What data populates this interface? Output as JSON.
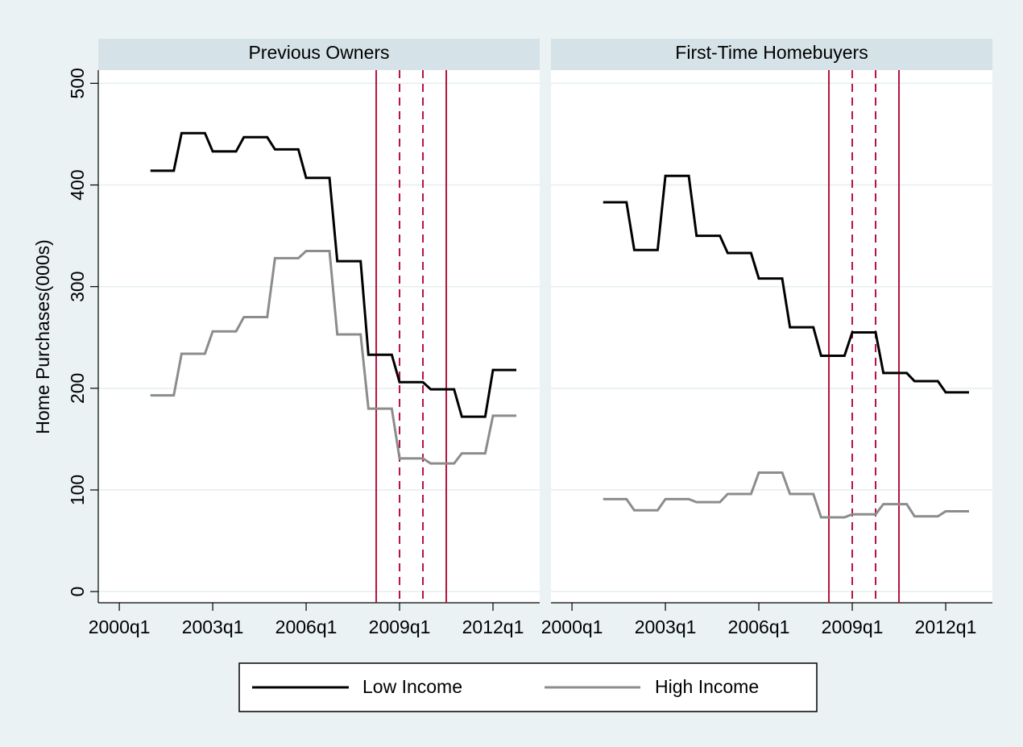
{
  "chart_data": [
    {
      "type": "line",
      "title": "Previous Owners",
      "ylabel": "Home Purchases(000s)",
      "x": [
        164,
        165,
        166,
        167,
        168,
        169,
        170,
        171,
        172,
        173,
        174,
        175,
        176,
        177,
        178,
        179,
        180,
        181,
        182,
        183,
        184,
        185,
        186,
        187,
        188,
        189,
        190,
        191,
        192,
        193,
        194,
        195,
        196,
        197,
        198,
        199,
        200,
        201,
        202,
        203,
        204,
        205,
        206,
        207,
        208,
        209,
        210,
        211
      ],
      "series": [
        {
          "name": "Low Income",
          "color": "#000000",
          "values": [
            414,
            414,
            414,
            414,
            451,
            451,
            451,
            451,
            433,
            433,
            433,
            433,
            447,
            447,
            447,
            447,
            435,
            435,
            435,
            435,
            407,
            407,
            407,
            407,
            325,
            325,
            325,
            325,
            233,
            233,
            233,
            233,
            206,
            206,
            206,
            206,
            199,
            199,
            199,
            199,
            172,
            172,
            172,
            172,
            218,
            218,
            218,
            218
          ]
        },
        {
          "name": "High Income",
          "color": "#8c8c8c",
          "values": [
            193,
            193,
            193,
            193,
            234,
            234,
            234,
            234,
            256,
            256,
            256,
            256,
            270,
            270,
            270,
            270,
            328,
            328,
            328,
            328,
            335,
            335,
            335,
            335,
            253,
            253,
            253,
            253,
            180,
            180,
            180,
            180,
            131,
            131,
            131,
            131,
            126,
            126,
            126,
            126,
            136,
            136,
            136,
            136,
            173,
            173,
            173,
            173
          ]
        }
      ],
      "xlim": [
        157.3,
        214
      ],
      "ylim": [
        -11,
        513
      ],
      "yticks": [
        0,
        100,
        200,
        300,
        400,
        500
      ],
      "xticks": [
        {
          "value": 160,
          "label": "2000q1"
        },
        {
          "value": 172,
          "label": "2003q1"
        },
        {
          "value": 184,
          "label": "2006q1"
        },
        {
          "value": 196,
          "label": "2009q1"
        },
        {
          "value": 208,
          "label": "2012q1"
        }
      ],
      "vlines": [
        {
          "x": 193,
          "style": "solid"
        },
        {
          "x": 196,
          "style": "dashed"
        },
        {
          "x": 199,
          "style": "dashed"
        },
        {
          "x": 202,
          "style": "solid"
        }
      ],
      "vline_color": "#b5123e",
      "grid": true
    },
    {
      "type": "line",
      "title": "First-Time Homebuyers",
      "x": [
        164,
        165,
        166,
        167,
        168,
        169,
        170,
        171,
        172,
        173,
        174,
        175,
        176,
        177,
        178,
        179,
        180,
        181,
        182,
        183,
        184,
        185,
        186,
        187,
        188,
        189,
        190,
        191,
        192,
        193,
        194,
        195,
        196,
        197,
        198,
        199,
        200,
        201,
        202,
        203,
        204,
        205,
        206,
        207,
        208,
        209,
        210,
        211
      ],
      "series": [
        {
          "color": "#000000",
          "values": [
            383,
            383,
            383,
            383,
            336,
            336,
            336,
            336,
            409,
            409,
            409,
            409,
            350,
            350,
            350,
            350,
            333,
            333,
            333,
            333,
            308,
            308,
            308,
            308,
            260,
            260,
            260,
            260,
            232,
            232,
            232,
            232,
            255,
            255,
            255,
            255,
            215,
            215,
            215,
            215,
            207,
            207,
            207,
            207,
            196,
            196,
            196,
            196
          ]
        },
        {
          "color": "#8c8c8c",
          "values": [
            91,
            91,
            91,
            91,
            80,
            80,
            80,
            80,
            91,
            91,
            91,
            91,
            88,
            88,
            88,
            88,
            96,
            96,
            96,
            96,
            117,
            117,
            117,
            117,
            96,
            96,
            96,
            96,
            73,
            73,
            73,
            73,
            76,
            76,
            76,
            76,
            86,
            86,
            86,
            86,
            74,
            74,
            74,
            74,
            79,
            79,
            79,
            79
          ]
        }
      ],
      "xlim": [
        157.3,
        214
      ],
      "ylim": [
        -11,
        513
      ],
      "yticks": [
        0,
        100,
        200,
        300,
        400,
        500
      ],
      "xticks": [
        {
          "value": 160,
          "label": "2000q1"
        },
        {
          "value": 172,
          "label": "2003q1"
        },
        {
          "value": 184,
          "label": "2006q1"
        },
        {
          "value": 196,
          "label": "2009q1"
        },
        {
          "value": 208,
          "label": "2012q1"
        }
      ],
      "vlines": [
        {
          "x": 193,
          "style": "solid"
        },
        {
          "x": 196,
          "style": "dashed"
        },
        {
          "x": 199,
          "style": "dashed"
        },
        {
          "x": 202,
          "style": "solid"
        }
      ],
      "vline_color": "#b5123e",
      "grid": true
    }
  ]
}
